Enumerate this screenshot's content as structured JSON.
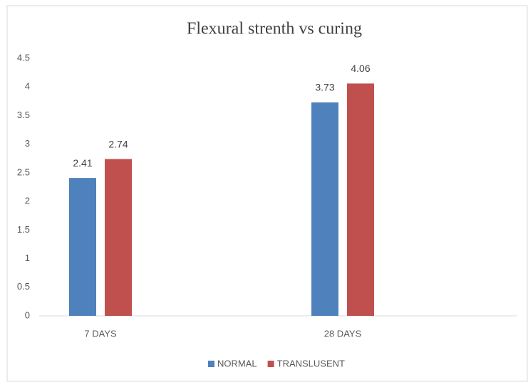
{
  "chart_data": {
    "type": "bar",
    "title": "Flexural strenth vs curing",
    "categories": [
      "7 DAYS",
      "28 DAYS"
    ],
    "series": [
      {
        "name": "NORMAL",
        "color": "#4f81bd",
        "values": [
          2.41,
          3.73
        ]
      },
      {
        "name": "TRANSLUSENT",
        "color": "#c0504d",
        "values": [
          2.74,
          4.06
        ]
      }
    ],
    "ylim": [
      0,
      4.5
    ],
    "yticks": [
      0,
      0.5,
      1,
      1.5,
      2,
      2.5,
      3,
      3.5,
      4,
      4.5
    ],
    "grid": false,
    "legend": "bottom"
  }
}
